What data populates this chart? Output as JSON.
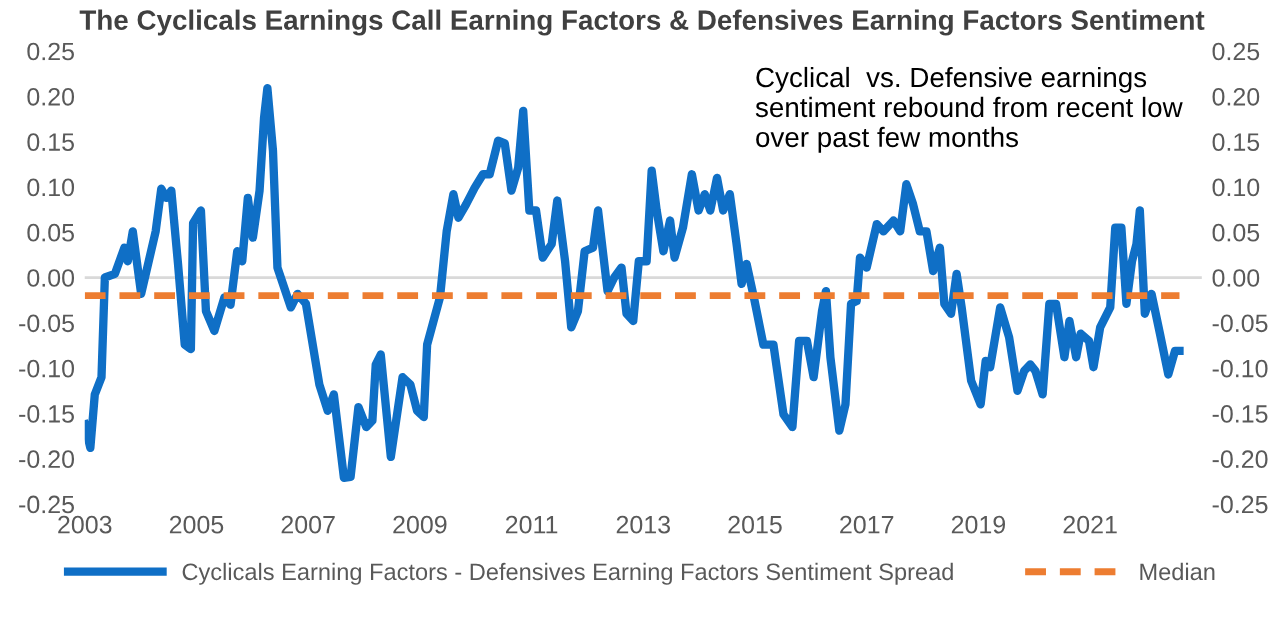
{
  "chart_data": {
    "type": "line",
    "title": "The Cyclicals Earnings Call Earning Factors & Defensives Earning Factors Sentiment",
    "annotations": [
      "Cyclical  vs. Defensive earnings\nsentiment rebound from recent low\nover past few months"
    ],
    "xlim": [
      2003,
      2023
    ],
    "xticks": [
      2003,
      2005,
      2007,
      2009,
      2011,
      2013,
      2015,
      2017,
      2019,
      2021
    ],
    "ylim": [
      -0.25,
      0.25
    ],
    "yticks": [
      {
        "value": 0.25,
        "label": "0.25"
      },
      {
        "value": 0.2,
        "label": "0.20"
      },
      {
        "value": 0.15,
        "label": "0.15"
      },
      {
        "value": 0.1,
        "label": "0.10"
      },
      {
        "value": 0.05,
        "label": "0.05"
      },
      {
        "value": 0,
        "label": "0.00"
      },
      {
        "value": -0.05,
        "label": "-0.05"
      },
      {
        "value": -0.1,
        "label": "-0.10"
      },
      {
        "value": -0.15,
        "label": "-0.15"
      },
      {
        "value": -0.2,
        "label": "-0.20"
      },
      {
        "value": -0.25,
        "label": "-0.25"
      }
    ],
    "y2lim": [
      -0.25,
      0.25
    ],
    "y2ticks": [
      {
        "value": 0.25,
        "label": "0.25"
      },
      {
        "value": 0.2,
        "label": "0.20"
      },
      {
        "value": 0.15,
        "label": "0.15"
      },
      {
        "value": 0.1,
        "label": "0.10"
      },
      {
        "value": 0.05,
        "label": "0.05"
      },
      {
        "value": 0,
        "label": "0.00"
      },
      {
        "value": -0.05,
        "label": "-0.05"
      },
      {
        "value": -0.1,
        "label": "-0.10"
      },
      {
        "value": -0.15,
        "label": "-0.15"
      },
      {
        "value": -0.2,
        "label": "-0.20"
      },
      {
        "value": -0.25,
        "label": "-0.25"
      }
    ],
    "grid": false,
    "legend": "bottom",
    "ref_lines": [
      {
        "axis": "y",
        "value": 0,
        "color": "#d9d9d9"
      }
    ],
    "series": [
      {
        "name": "Cyclicals Earning Factors - Defensives Earning Factors Sentiment Spread",
        "color": "#0f6fc6",
        "line_style": "solid",
        "x": [
          2003.0,
          2003.1,
          2003.18,
          2003.3,
          2003.36,
          2003.54,
          2003.71,
          2003.77,
          2003.86,
          2004.01,
          2004.27,
          2004.37,
          2004.46,
          2004.55,
          2004.67,
          2004.79,
          2004.9,
          2004.94,
          2005.08,
          2005.17,
          2005.32,
          2005.5,
          2005.61,
          2005.73,
          2005.82,
          2005.92,
          2006.01,
          2006.13,
          2006.21,
          2006.27,
          2006.37,
          2006.45,
          2006.69,
          2006.81,
          2006.96,
          2007.2,
          2007.35,
          2007.46,
          2007.64,
          2007.76,
          2007.9,
          2008.04,
          2008.15,
          2008.21,
          2008.3,
          2008.48,
          2008.69,
          2008.83,
          2008.95,
          2009.07,
          2009.13,
          2009.36,
          2009.48,
          2009.6,
          2009.69,
          2009.83,
          2009.98,
          2010.13,
          2010.25,
          2010.4,
          2010.52,
          2010.64,
          2010.76,
          2010.85,
          2010.96,
          2011.08,
          2011.2,
          2011.36,
          2011.46,
          2011.6,
          2011.71,
          2011.83,
          2011.95,
          2012.1,
          2012.19,
          2012.36,
          2012.48,
          2012.61,
          2012.7,
          2012.82,
          2012.92,
          2013.06,
          2013.15,
          2013.24,
          2013.36,
          2013.48,
          2013.56,
          2013.71,
          2013.87,
          2013.99,
          2014.1,
          2014.2,
          2014.32,
          2014.43,
          2014.55,
          2014.67,
          2014.76,
          2014.85,
          2014.98,
          2015.15,
          2015.33,
          2015.51,
          2015.67,
          2015.79,
          2015.93,
          2016.05,
          2016.2,
          2016.27,
          2016.35,
          2016.51,
          2016.62,
          2016.72,
          2016.82,
          2016.88,
          2017.0,
          2017.18,
          2017.3,
          2017.48,
          2017.6,
          2017.71,
          2017.83,
          2017.95,
          2018.07,
          2018.19,
          2018.31,
          2018.39,
          2018.51,
          2018.61,
          2018.7,
          2018.87,
          2019.04,
          2019.13,
          2019.21,
          2019.39,
          2019.55,
          2019.7,
          2019.82,
          2019.93,
          2020.02,
          2020.15,
          2020.27,
          2020.39,
          2020.54,
          2020.63,
          2020.75,
          2020.83,
          2020.98,
          2021.06,
          2021.18,
          2021.36,
          2021.45,
          2021.56,
          2021.65,
          2021.75,
          2021.83,
          2021.89,
          2021.98,
          2022.1,
          2022.25,
          2022.4,
          2022.52,
          2022.6
        ],
        "values": [
          -0.162,
          -0.188,
          -0.129,
          -0.11,
          0.0,
          0.004,
          0.033,
          0.018,
          0.051,
          -0.018,
          0.051,
          0.098,
          0.088,
          0.096,
          0.015,
          -0.074,
          -0.079,
          0.06,
          0.074,
          -0.037,
          -0.059,
          -0.022,
          -0.03,
          0.029,
          0.018,
          0.088,
          0.044,
          0.096,
          0.176,
          0.209,
          0.14,
          0.011,
          -0.033,
          -0.018,
          -0.029,
          -0.118,
          -0.147,
          -0.129,
          -0.221,
          -0.22,
          -0.143,
          -0.165,
          -0.158,
          -0.096,
          -0.085,
          -0.198,
          -0.11,
          -0.118,
          -0.147,
          -0.154,
          -0.074,
          -0.022,
          0.051,
          0.092,
          0.066,
          0.081,
          0.099,
          0.114,
          0.114,
          0.151,
          0.148,
          0.096,
          0.121,
          0.184,
          0.074,
          0.074,
          0.022,
          0.037,
          0.085,
          0.018,
          -0.055,
          -0.037,
          0.029,
          0.033,
          0.074,
          -0.015,
          0.0,
          0.011,
          -0.04,
          -0.048,
          0.018,
          0.018,
          0.118,
          0.074,
          0.029,
          0.063,
          0.022,
          0.055,
          0.114,
          0.074,
          0.092,
          0.074,
          0.11,
          0.074,
          0.092,
          0.037,
          -0.007,
          0.015,
          -0.022,
          -0.074,
          -0.074,
          -0.151,
          -0.165,
          -0.07,
          -0.07,
          -0.11,
          -0.037,
          -0.015,
          -0.088,
          -0.169,
          -0.14,
          -0.029,
          -0.026,
          0.022,
          0.011,
          0.059,
          0.051,
          0.063,
          0.051,
          0.103,
          0.081,
          0.051,
          0.051,
          0.007,
          0.033,
          -0.029,
          -0.04,
          0.004,
          -0.033,
          -0.114,
          -0.14,
          -0.092,
          -0.099,
          -0.033,
          -0.066,
          -0.125,
          -0.103,
          -0.096,
          -0.103,
          -0.129,
          -0.029,
          -0.029,
          -0.088,
          -0.048,
          -0.088,
          -0.062,
          -0.07,
          -0.099,
          -0.055,
          -0.033,
          0.055,
          0.055,
          -0.029,
          0.018,
          0.037,
          0.074,
          -0.04,
          -0.018,
          -0.062,
          -0.107,
          -0.081,
          -0.081
        ]
      },
      {
        "name": "Median",
        "color": "#ed7d31",
        "line_style": "dashed",
        "x": [
          2003.0,
          2022.6
        ],
        "values": [
          -0.02,
          -0.02
        ]
      }
    ]
  }
}
